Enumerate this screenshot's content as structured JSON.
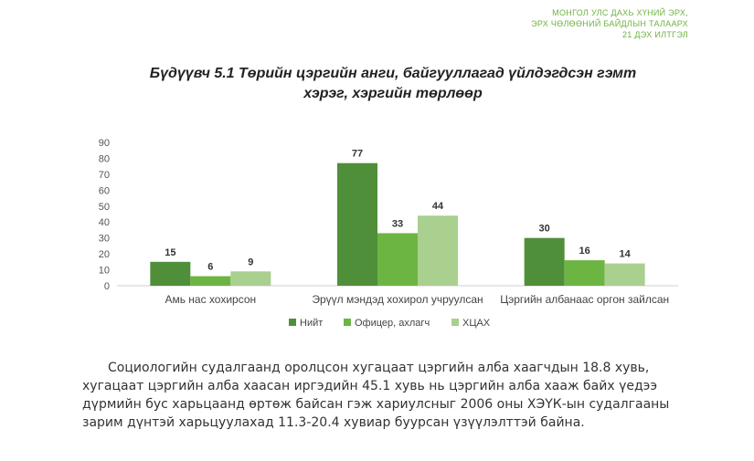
{
  "header": {
    "lines": [
      "МОНГОЛ УЛС ДАХЬ ХҮНИЙ ЭРХ,",
      "ЭРХ ЧӨЛӨӨНИЙ БАЙДЛЫН ТАЛААРХ",
      "21 ДЭХ ИЛТГЭЛ"
    ]
  },
  "chart_data": {
    "type": "bar",
    "title": "Бүдүүвч 5.1 Төрийн цэргийн анги, байгууллагад үйлдэгдсэн гэмт хэрэг, хэргийн төрлөөр",
    "title_lines": [
      "Бүдүүвч 5.1 Төрийн цэргийн анги, байгууллагад үйлдэгдсэн гэмт",
      "хэрэг, хэргийн төрлөөр"
    ],
    "categories": [
      "Амь нас хохирсон",
      "Эрүүл мэндэд хохирол учруулсан",
      "Цэргийн албанаас оргон зайлсан"
    ],
    "series": [
      {
        "name": "Нийт",
        "values": [
          15,
          77,
          30
        ],
        "color": "#4f8f3a"
      },
      {
        "name": "Офицер, ахлагч",
        "values": [
          6,
          33,
          16
        ],
        "color": "#6db543"
      },
      {
        "name": "ХЦАХ",
        "values": [
          9,
          44,
          14
        ],
        "color": "#a9d08e"
      }
    ],
    "ylim": [
      0,
      90
    ],
    "yticks": [
      0,
      10,
      20,
      30,
      40,
      50,
      60,
      70,
      80,
      90
    ],
    "legend": "bottom",
    "grid": false
  },
  "body": {
    "paragraph": "Социологийн судалгаанд оролцсон хугацаат цэргийн алба хаагчдын 18.8 хувь, хугацаат цэргийн алба хаасан иргэдийн 45.1 хувь нь цэргийн алба хааж байх үедээ дүрмийн бус харьцаанд өртөж байсан гэж хариулсныг 2006 оны ХЭҮК-ын судалгааны зарим дүнтэй харьцуулахад 11.3-20.4 хувиар буурсан үзүүлэлттэй байна."
  }
}
